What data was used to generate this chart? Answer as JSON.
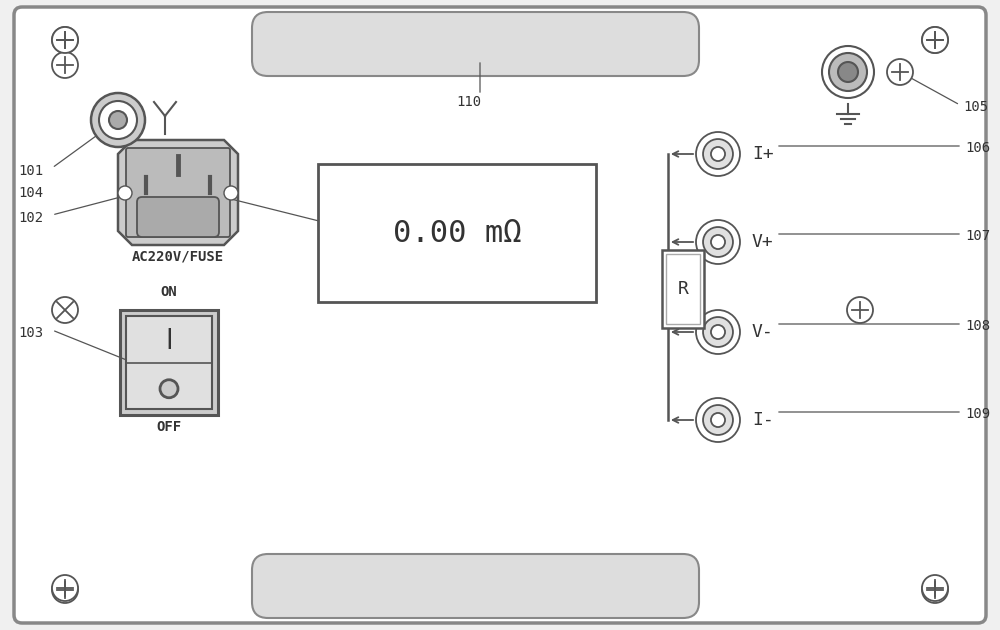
{
  "bg_color": "#f0f0f0",
  "panel_color": "#ffffff",
  "border_color": "#333333",
  "line_color": "#555555",
  "title": "0.00 mΩ",
  "label_101": "101",
  "label_102": "102",
  "label_103": "103",
  "label_104": "104",
  "label_105": "105",
  "label_106": "106",
  "label_107": "107",
  "label_108": "108",
  "label_109": "109",
  "label_110": "110",
  "ac_label": "AC220V/FUSE",
  "on_label": "ON",
  "off_label": "OFF",
  "r_label": "R",
  "i_plus_label": "I+",
  "v_plus_label": "V+",
  "v_minus_label": "V-",
  "i_minus_label": "I-"
}
